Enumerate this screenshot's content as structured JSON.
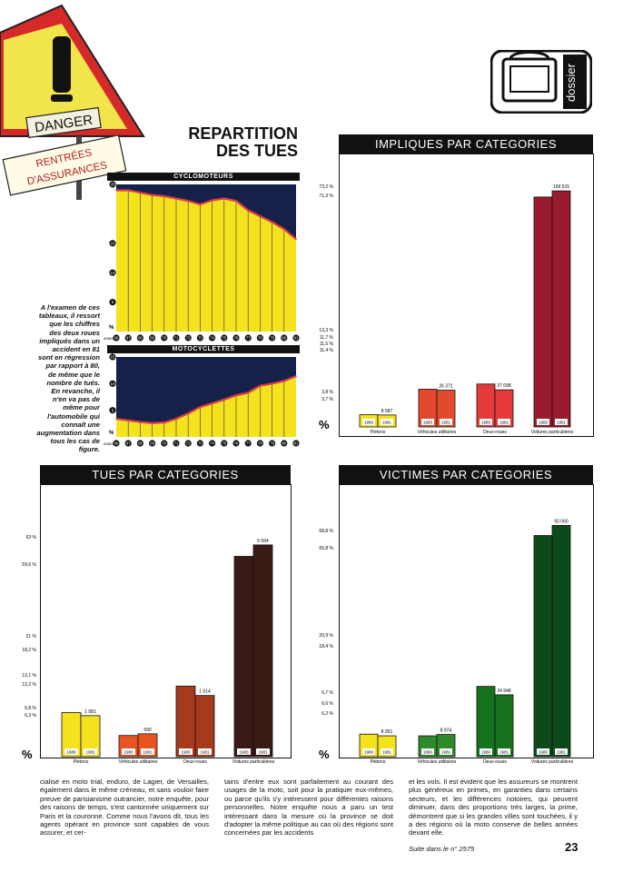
{
  "danger_sign": {
    "sign_text": "DANGER",
    "label_line1": "RENTRÉES",
    "label_line2": "D'ASSURANCES"
  },
  "dossier_tag": "dossier",
  "main_title_line1": "REPARTITION",
  "main_title_line2": "DES TUES",
  "intro_text": "A l'examen de ces tableaux, il ressort que les chiffres des deux roues impliqués dans un accident en 81 sont en régression par rapport à 80, de même que le nombre de tués. En revanche, il n'en va pas de même pour l'automobile qui connaît une augmentation dans tous les cas de figure.",
  "percent_symbol": "%",
  "annees_label": "ANNEES",
  "year_labels": [
    "1980",
    "1981"
  ],
  "categories": [
    "Piétons",
    "Véhicules utilitaires",
    "Deux-roues",
    "Voitures particulières"
  ],
  "cyclo": {
    "title": "CYCLOMOTEURS",
    "years": [
      "66",
      "67",
      "68",
      "69",
      "70",
      "71",
      "72",
      "73",
      "74",
      "75",
      "76",
      "77",
      "78",
      "79",
      "80",
      "81"
    ],
    "y_ticks": [
      "25",
      "15",
      "10",
      "5"
    ],
    "values": [
      24,
      24,
      23.6,
      23.2,
      23,
      22.6,
      22.2,
      21.6,
      22.3,
      22.6,
      22.2,
      20.6,
      19.6,
      18.6,
      17.4,
      15.7
    ]
  },
  "moto": {
    "title": "MOTOCYCLETTES",
    "years": [
      "66",
      "67",
      "68",
      "69",
      "70",
      "71",
      "72",
      "73",
      "74",
      "75",
      "76",
      "77",
      "78",
      "79",
      "80",
      "81"
    ],
    "y_ticks": [
      "15",
      "10",
      "5"
    ],
    "values": [
      3.4,
      3.1,
      2.8,
      2.6,
      2.7,
      3.4,
      4.4,
      5.6,
      6.3,
      7,
      7.8,
      8.3,
      9.6,
      10,
      10.5,
      11.4
    ]
  },
  "impliques": {
    "title": "IMPLIQUES PAR CATEGORIES",
    "pct_labels": [
      "73,2 %",
      "71,3 %",
      "13,3 %",
      "11,7 %",
      "11,5 %",
      "11,4 %",
      "3,8 %",
      "3,7 %"
    ],
    "values_1980": [
      3.8,
      11.7,
      13.3,
      71.3
    ],
    "values_1981": [
      3.7,
      11.4,
      11.5,
      73.2
    ],
    "data_labels": [
      "8 587",
      "26 371",
      "27 098",
      "169 515"
    ],
    "colors": [
      "#f4e21c",
      "#e3492c",
      "#e43a3a",
      "#9b1b2e"
    ]
  },
  "tues": {
    "title": "TUES PAR CATEGORIES",
    "pct_labels": [
      "63 %",
      "59,6 %",
      "21 %",
      "18,2 %",
      "13,1 %",
      "12,2 %",
      "6,8 %",
      "6,3 %"
    ],
    "values_1980": [
      13.1,
      6.3,
      21,
      59.6
    ],
    "values_1981": [
      12.2,
      6.8,
      18.2,
      63
    ],
    "data_labels": [
      "1 081",
      "590",
      "1 614",
      "5 594"
    ],
    "colors": [
      "#f4e21c",
      "#e8541f",
      "#a7391d",
      "#3a1a14"
    ]
  },
  "victimes": {
    "title": "VICTIMES PAR CATEGORIES",
    "pct_labels": [
      "68,8 %",
      "65,8 %",
      "20,9 %",
      "18,4 %",
      "6,7 %",
      "6,6 %",
      "6,2 %"
    ],
    "values_1980": [
      6.7,
      6.2,
      20.9,
      65.8
    ],
    "values_1981": [
      6.2,
      6.6,
      18.4,
      68.8
    ],
    "data_labels": [
      "8 351",
      "8 974",
      "24 948",
      "93 060"
    ],
    "colors": [
      "#f4e21c",
      "#2f8a2a",
      "#16721f",
      "#0d4a1a"
    ]
  },
  "article": {
    "col1": "cialisé en moto trial, enduro, de Lagier, de Versailles, également dans le même créneau, et sans vouloir faire preuve de parisianisme outrancier, notre enquête, pour des raisons de temps, s'est cantonnée uniquement sur Paris et la couronne. Comme nous l'avons dit, tous les agents opérant en province sont capables de vous assurer, et cer-",
    "col2": "tains d'entre eux sont parfaitement au courant des usages de la moto, soit pour la pratiquer eux-mêmes, ou parce qu'ils s'y intéressent pour différentes raisons personnelles. Notre enquête nous a paru un test intéressant dans la mesure où la province se doit d'adopter la même politique au cas où des régions sont concernées par les accidents",
    "col3": "et les vols. Il est évident que les assureurs se montrent plus généreux en primes, en garanties dans certains secteurs, et les différences notoires, qui peuvent diminuer, dans des proportions très larges, la prime, démontrent que si les grandes villes sont touchées, il y a des régions où la moto conserve de belles années devant elle.",
    "continued": "Suite dans le n° 2575",
    "page_number": "23"
  }
}
